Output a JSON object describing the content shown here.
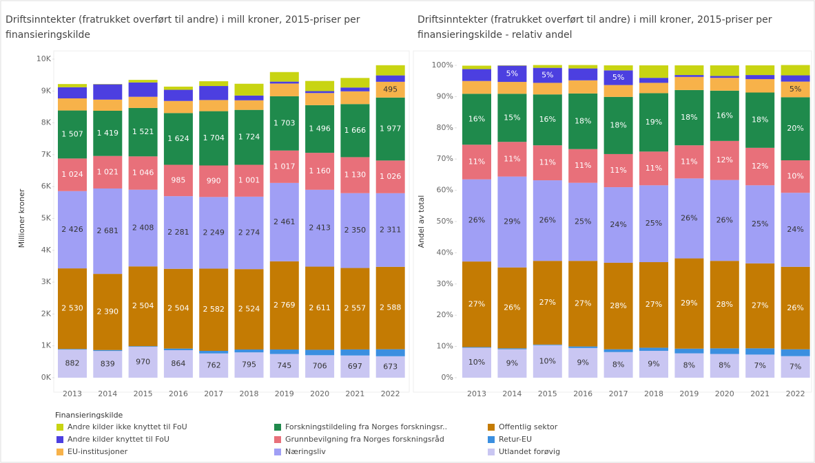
{
  "chart_data": [
    {
      "type": "stacked_bar",
      "title": "Driftsinntekter (fratrukket overført til andre) i mill kroner, 2015-priser per finansieringskilde",
      "ylabel": "Millioner kroner",
      "categories": [
        "2013",
        "2014",
        "2015",
        "2016",
        "2017",
        "2018",
        "2019",
        "2020",
        "2021",
        "2022"
      ],
      "ylim": [
        0,
        10000
      ],
      "yticks": [
        {
          "value": 0,
          "label": "0K"
        },
        {
          "value": 1000,
          "label": "1K"
        },
        {
          "value": 2000,
          "label": "2K"
        },
        {
          "value": 3000,
          "label": "3K"
        },
        {
          "value": 4000,
          "label": "4K"
        },
        {
          "value": 5000,
          "label": "5K"
        },
        {
          "value": 6000,
          "label": "6K"
        },
        {
          "value": 7000,
          "label": "7K"
        },
        {
          "value": 8000,
          "label": "8K"
        },
        {
          "value": 9000,
          "label": "9K"
        },
        {
          "value": 10000,
          "label": "10K"
        }
      ],
      "series": [
        {
          "name": "Utlandet forøvig",
          "color": "#c9c6f2",
          "values": [
            882,
            839,
            970,
            864,
            762,
            795,
            745,
            706,
            697,
            673
          ],
          "value_labels": [
            "882",
            "839",
            "970",
            "864",
            "762",
            "795",
            "745",
            "706",
            "697",
            "673"
          ]
        },
        {
          "name": "Retur-EU",
          "color": "#3b8fe0",
          "values": [
            20,
            30,
            20,
            50,
            80,
            90,
            140,
            170,
            190,
            220
          ]
        },
        {
          "name": "Offentlig sektor",
          "color": "#c47b03",
          "values": [
            2530,
            2390,
            2504,
            2504,
            2582,
            2524,
            2769,
            2611,
            2557,
            2588
          ],
          "value_labels": [
            "2 530",
            "2 390",
            "2 504",
            "2 504",
            "2 582",
            "2 524",
            "2 769",
            "2 611",
            "2 557",
            "2 588"
          ]
        },
        {
          "name": "Næringsliv",
          "color": "#a09ff5",
          "values": [
            2426,
            2681,
            2408,
            2281,
            2249,
            2274,
            2461,
            2413,
            2350,
            2311
          ],
          "value_labels": [
            "2 426",
            "2 681",
            "2 408",
            "2 281",
            "2 249",
            "2 274",
            "2 461",
            "2 413",
            "2 350",
            "2 311"
          ]
        },
        {
          "name": "Grunnbevilgning fra Norges forskningsråd",
          "color": "#e8707a",
          "values": [
            1024,
            1021,
            1046,
            985,
            990,
            1001,
            1017,
            1160,
            1130,
            1026
          ],
          "value_labels": [
            "1 024",
            "1 021",
            "1 046",
            "985",
            "990",
            "1 001",
            "1 017",
            "1 160",
            "1 130",
            "1 026"
          ]
        },
        {
          "name": "Forskningstildeling fra Norges forskningsr..",
          "color": "#1f8a4c",
          "values": [
            1507,
            1419,
            1521,
            1624,
            1704,
            1724,
            1703,
            1496,
            1666,
            1977
          ],
          "value_labels": [
            "1 507",
            "1 419",
            "1 521",
            "1 624",
            "1 704",
            "1 724",
            "1 703",
            "1 496",
            "1 666",
            "1 977"
          ]
        },
        {
          "name": "EU-institusjoner",
          "color": "#f7b24a",
          "values": [
            380,
            350,
            350,
            380,
            350,
            300,
            400,
            380,
            400,
            495
          ],
          "value_labels": [
            null,
            null,
            null,
            null,
            null,
            null,
            null,
            null,
            null,
            "495"
          ]
        },
        {
          "name": "Andre kilder knyttet til FoU",
          "color": "#4c3fe0",
          "values": [
            350,
            480,
            450,
            350,
            440,
            150,
            60,
            60,
            120,
            200
          ]
        },
        {
          "name": "Andre kilder ikke knyttet til FoU",
          "color": "#c8d412",
          "values": [
            100,
            10,
            80,
            100,
            150,
            370,
            300,
            320,
            300,
            320
          ]
        }
      ]
    },
    {
      "type": "stacked_bar",
      "title": "Driftsinntekter (fratrukket overført til andre) i mill kroner, 2015-priser per finansieringskilde - relativ andel",
      "ylabel": "Andel av total",
      "categories": [
        "2013",
        "2014",
        "2015",
        "2016",
        "2017",
        "2018",
        "2019",
        "2020",
        "2021",
        "2022"
      ],
      "ylim": [
        0,
        100
      ],
      "yticks": [
        {
          "value": 0,
          "label": "0%"
        },
        {
          "value": 10,
          "label": "10%"
        },
        {
          "value": 20,
          "label": "20%"
        },
        {
          "value": 30,
          "label": "30%"
        },
        {
          "value": 40,
          "label": "40%"
        },
        {
          "value": 50,
          "label": "50%"
        },
        {
          "value": 60,
          "label": "60%"
        },
        {
          "value": 70,
          "label": "70%"
        },
        {
          "value": 80,
          "label": "80%"
        },
        {
          "value": 90,
          "label": "90%"
        },
        {
          "value": 100,
          "label": "100%"
        }
      ],
      "series": [
        {
          "name": "Utlandet forøvig",
          "color": "#c9c6f2",
          "values": [
            9.6,
            9.1,
            10.4,
            9.5,
            8.2,
            8.6,
            7.8,
            7.6,
            7.4,
            6.9
          ],
          "value_labels": [
            "10%",
            "9%",
            "10%",
            "9%",
            "8%",
            "9%",
            "8%",
            "8%",
            "7%",
            "7%"
          ]
        },
        {
          "name": "Retur-EU",
          "color": "#3b8fe0",
          "values": [
            0.2,
            0.3,
            0.2,
            0.5,
            0.9,
            1.0,
            1.5,
            1.8,
            2.0,
            2.2
          ]
        },
        {
          "name": "Offentlig sektor",
          "color": "#c47b03",
          "values": [
            27.4,
            25.9,
            26.8,
            27.4,
            27.7,
            27.4,
            28.9,
            28.0,
            27.2,
            26.4
          ],
          "value_labels": [
            "27%",
            "26%",
            "27%",
            "27%",
            "28%",
            "27%",
            "29%",
            "28%",
            "27%",
            "26%"
          ]
        },
        {
          "name": "Næringsliv",
          "color": "#a09ff5",
          "values": [
            26.3,
            29.1,
            25.8,
            25.0,
            24.2,
            24.6,
            25.6,
            25.9,
            25.0,
            23.7
          ],
          "value_labels": [
            "26%",
            "29%",
            "26%",
            "25%",
            "24%",
            "25%",
            "26%",
            "26%",
            "25%",
            "24%"
          ]
        },
        {
          "name": "Grunnbevilgning fra Norges forskningsråd",
          "color": "#e8707a",
          "values": [
            11.1,
            11.1,
            11.2,
            10.8,
            10.6,
            10.8,
            10.6,
            12.5,
            12.0,
            10.4
          ],
          "value_labels": [
            "11%",
            "11%",
            "11%",
            "11%",
            "11%",
            "11%",
            "11%",
            "12%",
            "12%",
            "10%"
          ]
        },
        {
          "name": "Forskningstildeling fra Norges forskningsr..",
          "color": "#1f8a4c",
          "values": [
            16.3,
            15.4,
            16.3,
            17.8,
            18.3,
            18.7,
            17.7,
            16.1,
            17.7,
            20.2
          ],
          "value_labels": [
            "16%",
            "15%",
            "16%",
            "18%",
            "18%",
            "19%",
            "18%",
            "16%",
            "18%",
            "20%"
          ]
        },
        {
          "name": "EU-institusjoner",
          "color": "#f7b24a",
          "values": [
            4.1,
            3.8,
            3.7,
            4.2,
            3.8,
            3.3,
            4.2,
            4.1,
            4.3,
            5.0
          ],
          "value_labels": [
            null,
            null,
            null,
            null,
            null,
            null,
            null,
            null,
            null,
            "5%"
          ]
        },
        {
          "name": "Andre kilder knyttet til FoU",
          "color": "#4c3fe0",
          "values": [
            3.8,
            5.2,
            4.8,
            3.8,
            4.7,
            1.6,
            0.6,
            0.6,
            1.3,
            2.0
          ],
          "value_labels": [
            null,
            "5%",
            "5%",
            null,
            "5%",
            null,
            null,
            null,
            null,
            null
          ]
        },
        {
          "name": "Andre kilder ikke knyttet til FoU",
          "color": "#c8d412",
          "values": [
            1.1,
            0.1,
            0.9,
            1.1,
            1.6,
            4.0,
            3.1,
            3.4,
            3.1,
            3.3
          ]
        }
      ]
    }
  ],
  "legend": {
    "title": "Finansieringskilde",
    "order": [
      8,
      5,
      2,
      7,
      4,
      1,
      6,
      3,
      0
    ]
  }
}
